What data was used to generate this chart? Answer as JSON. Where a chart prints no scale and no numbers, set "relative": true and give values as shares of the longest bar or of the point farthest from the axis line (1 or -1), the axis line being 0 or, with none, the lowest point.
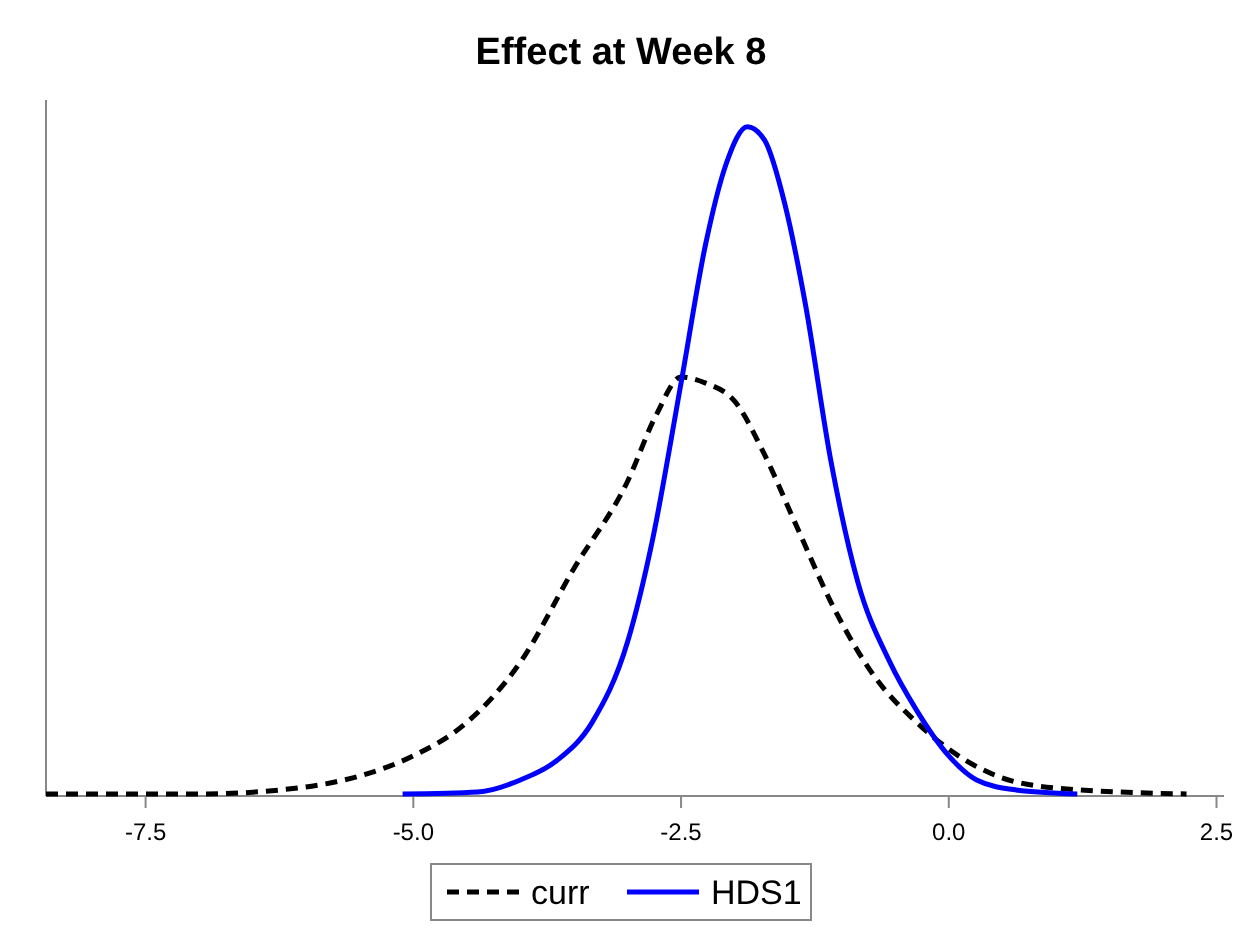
{
  "chart_data": {
    "type": "line",
    "title": "Effect at Week 8",
    "relative": true,
    "legend": "bottom",
    "xlim": [
      -8.43,
      2.57
    ],
    "xticks": [
      -7.5,
      {
        "value": -5,
        "label": "-5.0"
      },
      -2.5,
      {
        "value": 0,
        "label": "0.0"
      },
      2.5
    ],
    "series": [
      {
        "name": "curr",
        "color": "#000000",
        "line_style": "dashed",
        "x": [
          -8.43,
          -7.0,
          -6.08,
          -5.5,
          -5.0,
          -4.5,
          -4.0,
          -3.5,
          -3.0,
          -2.73,
          -2.5,
          -2.27,
          -2.0,
          -1.72,
          -1.44,
          -1.07,
          -0.7,
          -0.3,
          0.0,
          0.45,
          1.0,
          2.22
        ],
        "values": [
          0.003,
          0.003,
          0.012,
          0.03,
          0.06,
          0.11,
          0.2,
          0.34,
          0.47,
          0.57,
          0.626,
          0.617,
          0.59,
          0.51,
          0.41,
          0.28,
          0.18,
          0.11,
          0.07,
          0.03,
          0.012,
          0.003
        ]
      },
      {
        "name": "HDS1",
        "color": "#0000ff",
        "line_style": "solid",
        "x": [
          -5.1,
          -4.4,
          -4.0,
          -3.66,
          -3.33,
          -3.0,
          -2.77,
          -2.5,
          -2.27,
          -2.08,
          -1.88,
          -1.72,
          -1.53,
          -1.34,
          -1.1,
          -0.85,
          -0.55,
          -0.3,
          0.0,
          0.26,
          0.63,
          1.2
        ],
        "values": [
          0.003,
          0.006,
          0.024,
          0.053,
          0.11,
          0.23,
          0.38,
          0.617,
          0.825,
          0.944,
          1.0,
          0.98,
          0.884,
          0.736,
          0.5,
          0.32,
          0.2,
          0.128,
          0.06,
          0.024,
          0.009,
          0.003
        ]
      }
    ]
  }
}
